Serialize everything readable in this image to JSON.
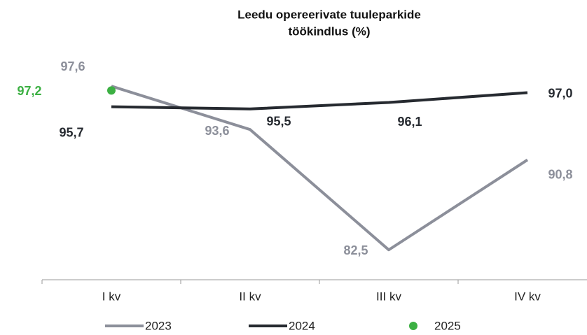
{
  "chart_data": {
    "type": "line",
    "title": [
      "Leedu opereerivate tuuleparkide",
      "töökindlus (%)"
    ],
    "categories": [
      "I kv",
      "II kv",
      "III kv",
      "IV kv"
    ],
    "ylim": [
      80,
      102
    ],
    "series": [
      {
        "name": "2023",
        "color": "#8c8f9a",
        "mode": "lines",
        "values": [
          97.6,
          93.6,
          82.5,
          90.8
        ],
        "value_labels": [
          "97,6",
          "93,6",
          "82,5",
          "90,8"
        ]
      },
      {
        "name": "2024",
        "color": "#262a30",
        "mode": "lines",
        "values": [
          95.7,
          95.5,
          96.1,
          97.0
        ],
        "value_labels": [
          "95,7",
          "95,5",
          "96,1",
          "97,0"
        ]
      },
      {
        "name": "2025",
        "color": "#3cb043",
        "mode": "markers",
        "values": [
          97.2,
          null,
          null,
          null
        ],
        "value_labels": [
          "97,2",
          null,
          null,
          null
        ]
      }
    ]
  }
}
